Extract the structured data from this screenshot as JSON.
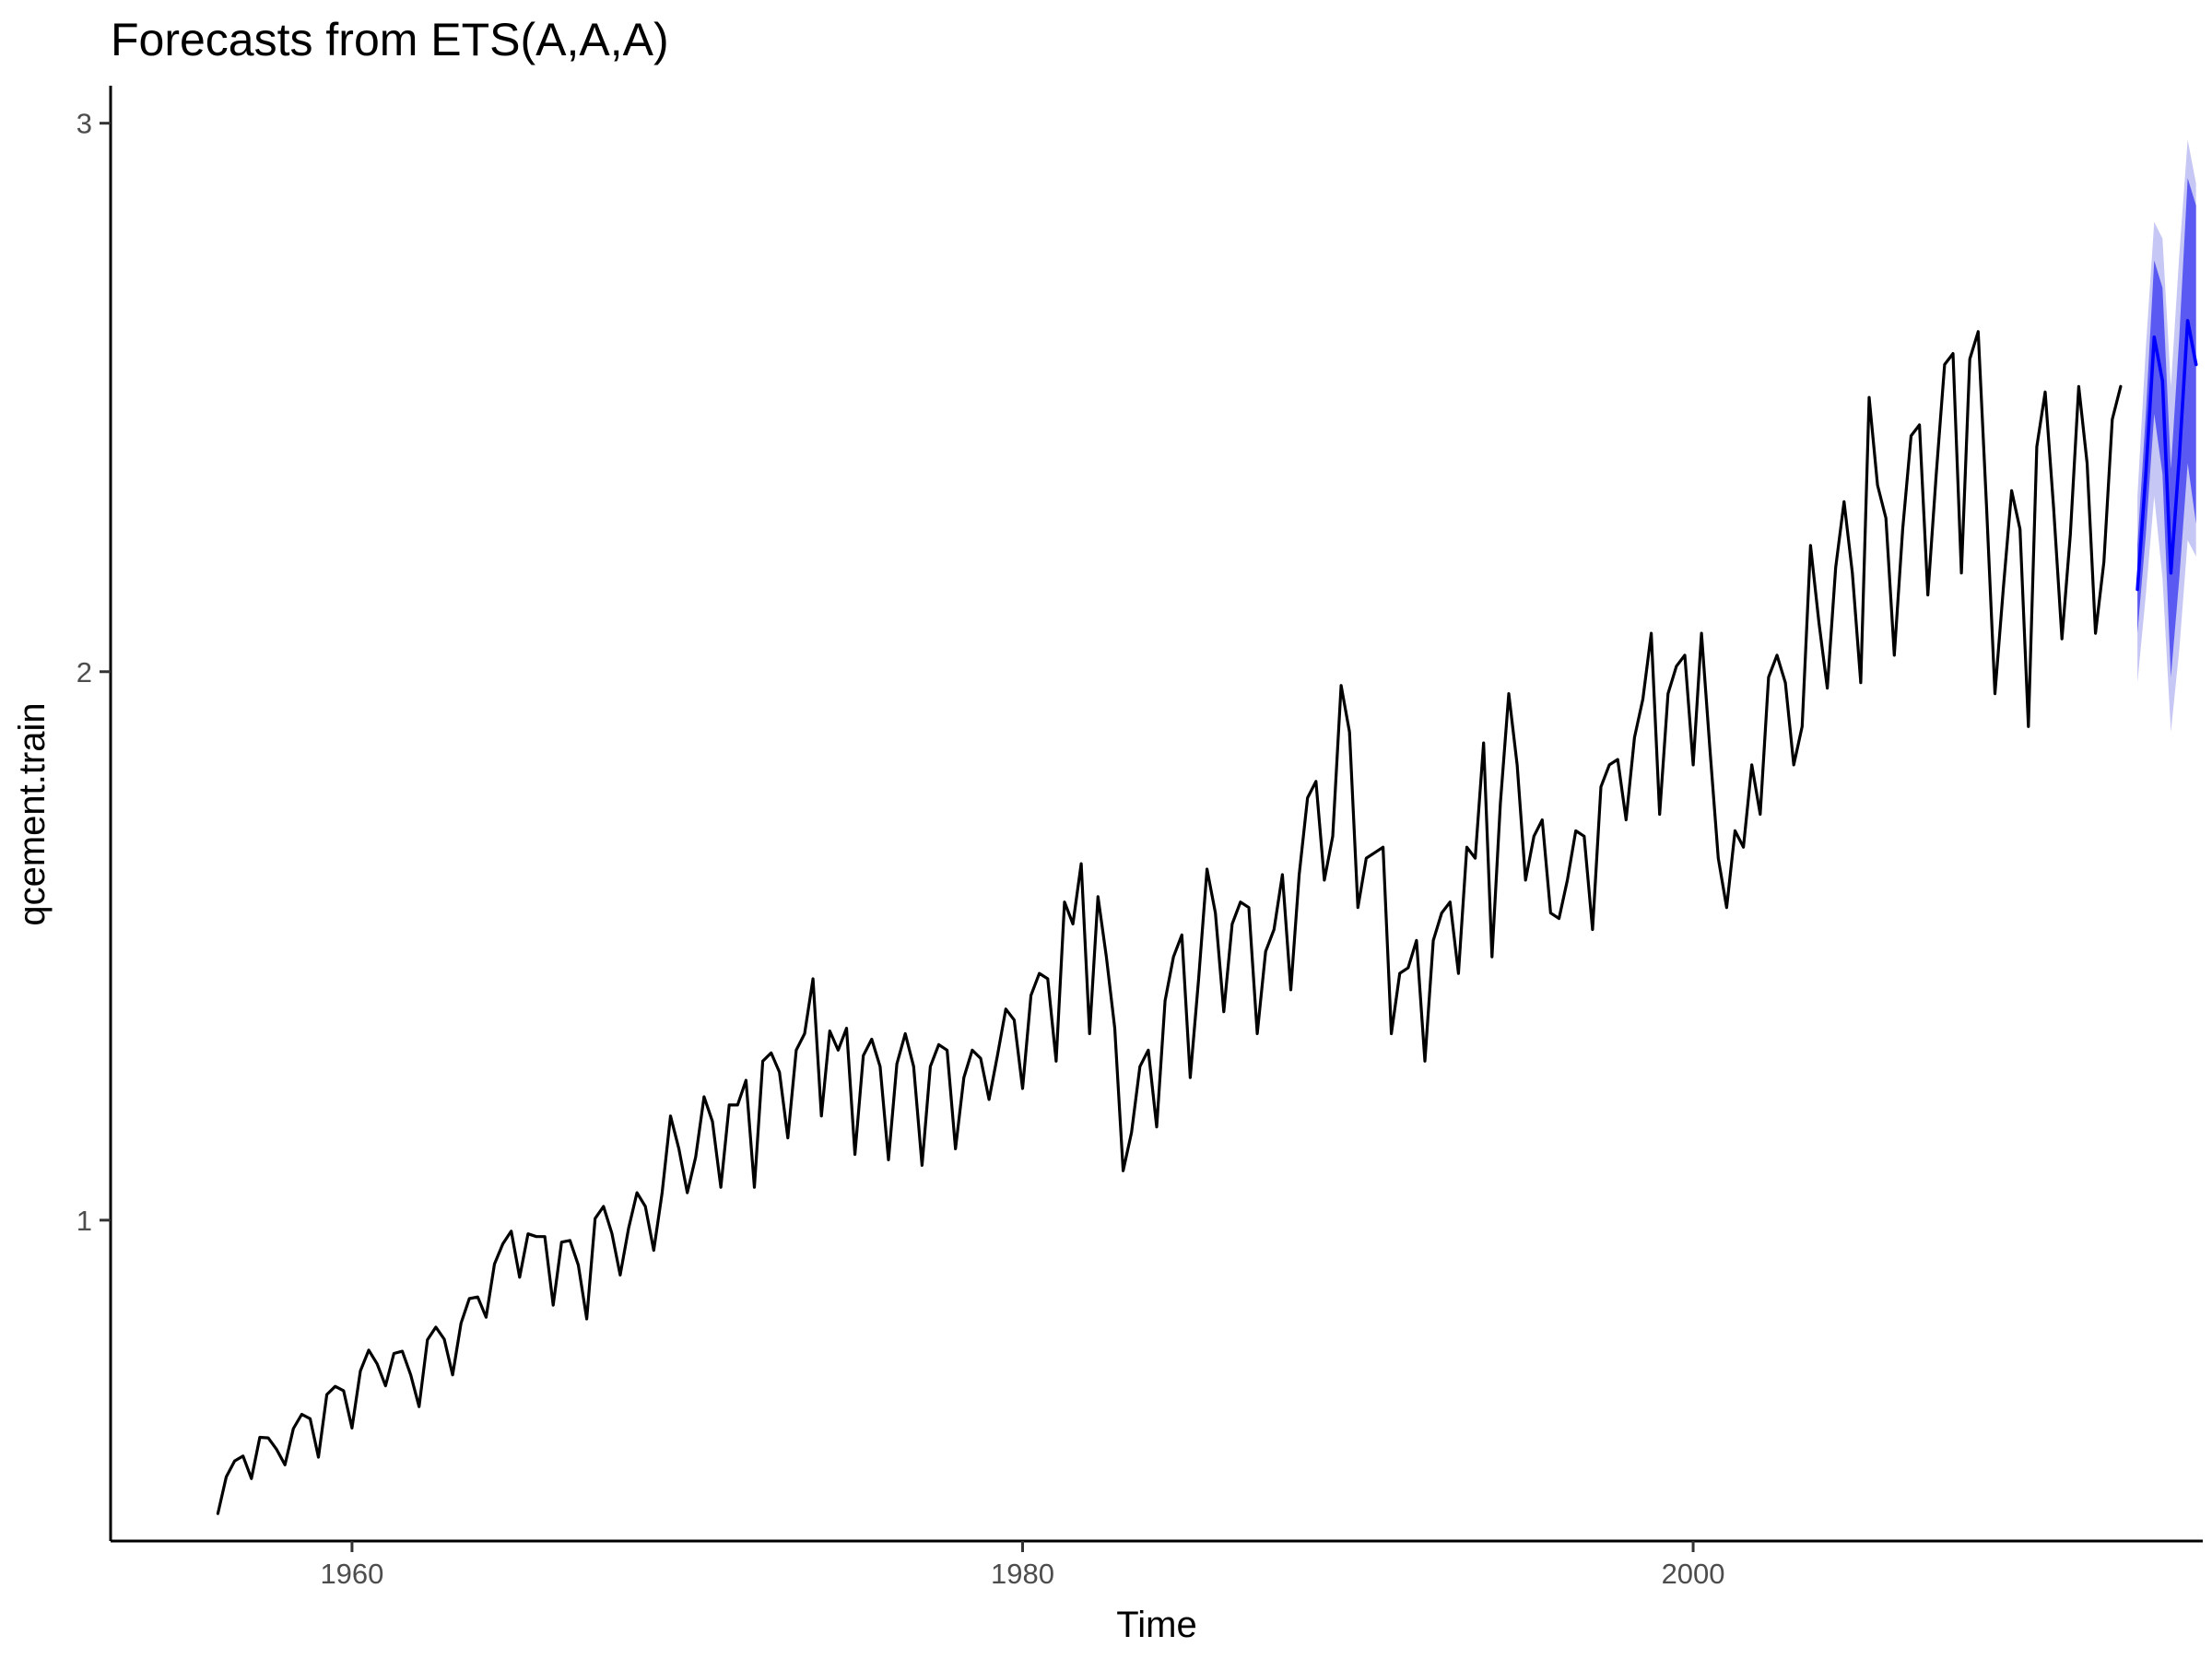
{
  "chart_data": {
    "type": "line",
    "title": "Forecasts from ETS(A,A,A)",
    "xlabel": "Time",
    "ylabel": "qcement.train",
    "xlim": [
      1952.8,
      2015.2
    ],
    "ylim": [
      0.415,
      3.065
    ],
    "x_ticks": [
      1960,
      1980,
      2000
    ],
    "x_tick_labels": [
      "1960",
      "1980",
      "2000"
    ],
    "y_ticks": [
      1,
      2,
      3
    ],
    "y_tick_labels": [
      "1",
      "2",
      "3"
    ],
    "grid": false,
    "legend": "none",
    "colors": {
      "history": "#000000",
      "forecast": "#0000ff",
      "band_80": "#5a5af2",
      "band_95": "#c7c7f5",
      "axis": "#000000",
      "tick_label": "#4d4d4d"
    },
    "series": [
      {
        "start": 1956.0,
        "frequency": 4,
        "values": [
          0.465,
          0.532,
          0.561,
          0.57,
          0.529,
          0.604,
          0.603,
          0.582,
          0.554,
          0.62,
          0.646,
          0.638,
          0.568,
          0.682,
          0.697,
          0.689,
          0.621,
          0.725,
          0.763,
          0.738,
          0.698,
          0.757,
          0.761,
          0.718,
          0.66,
          0.782,
          0.805,
          0.783,
          0.718,
          0.812,
          0.857,
          0.86,
          0.823,
          0.92,
          0.957,
          0.98,
          0.896,
          0.975,
          0.97,
          0.97,
          0.845,
          0.96,
          0.963,
          0.918,
          0.82,
          1.003,
          1.025,
          0.976,
          0.9,
          0.985,
          1.05,
          1.025,
          0.945,
          1.05,
          1.19,
          1.13,
          1.05,
          1.115,
          1.225,
          1.18,
          1.06,
          1.21,
          1.21,
          1.255,
          1.06,
          1.29,
          1.305,
          1.27,
          1.15,
          1.31,
          1.34,
          1.44,
          1.19,
          1.345,
          1.31,
          1.35,
          1.12,
          1.3,
          1.33,
          1.28,
          1.11,
          1.285,
          1.34,
          1.28,
          1.1,
          1.28,
          1.32,
          1.31,
          1.13,
          1.26,
          1.31,
          1.295,
          1.22,
          1.3,
          1.385,
          1.365,
          1.24,
          1.41,
          1.45,
          1.44,
          1.29,
          1.58,
          1.54,
          1.65,
          1.34,
          1.59,
          1.48,
          1.35,
          1.09,
          1.16,
          1.28,
          1.31,
          1.17,
          1.4,
          1.48,
          1.52,
          1.26,
          1.44,
          1.64,
          1.56,
          1.38,
          1.54,
          1.58,
          1.57,
          1.34,
          1.49,
          1.53,
          1.63,
          1.42,
          1.63,
          1.77,
          1.8,
          1.62,
          1.7,
          1.975,
          1.89,
          1.57,
          1.66,
          1.67,
          1.68,
          1.34,
          1.45,
          1.46,
          1.51,
          1.29,
          1.51,
          1.56,
          1.58,
          1.45,
          1.68,
          1.66,
          1.87,
          1.48,
          1.76,
          1.96,
          1.83,
          1.62,
          1.7,
          1.73,
          1.56,
          1.55,
          1.62,
          1.71,
          1.7,
          1.53,
          1.79,
          1.83,
          1.84,
          1.73,
          1.88,
          1.95,
          2.07,
          1.74,
          1.96,
          2.01,
          2.03,
          1.83,
          2.07,
          1.86,
          1.66,
          1.57,
          1.71,
          1.68,
          1.83,
          1.74,
          1.99,
          2.03,
          1.98,
          1.83,
          1.9,
          2.23,
          2.09,
          1.97,
          2.19,
          2.31,
          2.18,
          1.98,
          2.5,
          2.34,
          2.28,
          2.03,
          2.26,
          2.43,
          2.45,
          2.14,
          2.36,
          2.56,
          2.58,
          2.18,
          2.57,
          2.62,
          2.3,
          1.96,
          2.15,
          2.33,
          2.26,
          1.9,
          2.41,
          2.51,
          2.3,
          2.06,
          2.25,
          2.52,
          2.38,
          2.07,
          2.2,
          2.46,
          2.52
        ]
      },
      {
        "start": 2013.25,
        "frequency": 4,
        "values": [
          2.15,
          2.36,
          2.61,
          2.53,
          2.18,
          2.39,
          2.64,
          2.56
        ],
        "lower_80": [
          2.07,
          2.25,
          2.47,
          2.36,
          1.99,
          2.17,
          2.38,
          2.27
        ],
        "upper_80": [
          2.23,
          2.47,
          2.75,
          2.7,
          2.37,
          2.61,
          2.9,
          2.85
        ],
        "lower_95": [
          1.98,
          2.14,
          2.32,
          2.17,
          1.89,
          2.04,
          2.24,
          2.21
        ],
        "upper_95": [
          2.32,
          2.59,
          2.82,
          2.79,
          2.52,
          2.76,
          2.97,
          2.89
        ]
      }
    ]
  }
}
